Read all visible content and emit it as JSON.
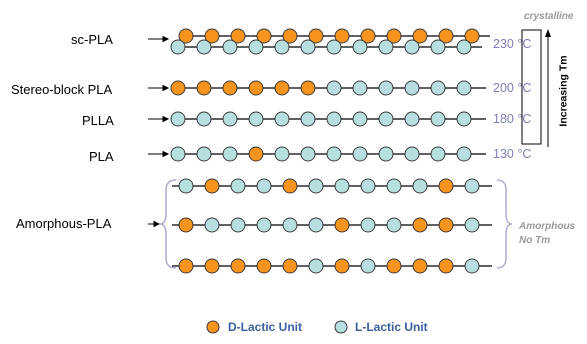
{
  "labels": {
    "sc_pla": "sc-PLA",
    "stereo_block": "Stereo-block PLA",
    "plla": "PLLA",
    "pla": "PLA",
    "amorphous": "Amorphous-PLA"
  },
  "temperatures": {
    "sc_pla": "230 °C",
    "stereo_block": "200 °C",
    "plla": "180 °C",
    "pla": "130 °C"
  },
  "annotations": {
    "crystalline": "crystalline",
    "increasing": "Increasing Tm",
    "amorphous_line1": "Amorphous",
    "amorphous_line2": "No Tm"
  },
  "legend": {
    "d_unit": "D-Lactic Unit",
    "l_unit": "L-Lactic Unit"
  },
  "colors": {
    "d_unit": "#f7941d",
    "l_unit": "#b7dfe0",
    "outline": "#3a3a3a",
    "temperature": "#7d7fb6",
    "brace": "#b3acd4"
  },
  "chains": [
    {
      "name": "sc-pla-top",
      "units": "DDDDDDDDDDDD"
    },
    {
      "name": "sc-pla-bottom",
      "units": "LLLLLLLLLLLL"
    },
    {
      "name": "stereo-block-pla",
      "units": "DDDDDDLLLLLL"
    },
    {
      "name": "plla",
      "units": "LLLLLLLLLLLL"
    },
    {
      "name": "pla",
      "units": "LLLDLLLLLLLL"
    },
    {
      "name": "amorphous-1",
      "units": "LDLLDLLLLLDL"
    },
    {
      "name": "amorphous-2",
      "units": "DLLLLLDLLDDL"
    },
    {
      "name": "amorphous-3",
      "units": "DDDDDLDLDDDL"
    }
  ]
}
